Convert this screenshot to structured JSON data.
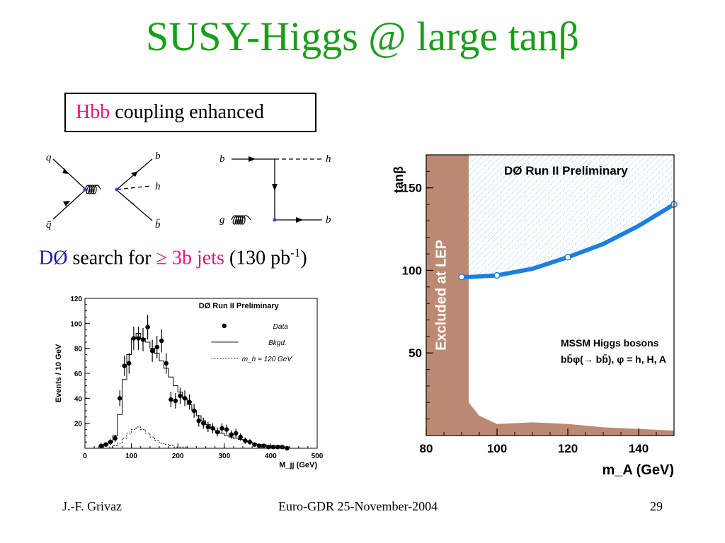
{
  "title": {
    "main": "SUSY-Higgs @ large tan",
    "beta": "β"
  },
  "box": {
    "hbb": "Hbb",
    "rest": " coupling enhanced"
  },
  "feynman": {
    "diagram1": {
      "top_left": "q",
      "bottom_left": "q̄",
      "top_right": "b",
      "middle_right": "h",
      "bottom_right": "b̄"
    },
    "diagram2": {
      "top_left": "b",
      "top_right": "h",
      "bottom_left": "g",
      "bottom_right": "b"
    }
  },
  "search": {
    "d0": "DØ",
    "text1": " search for ",
    "geq": "≥ 3b jets",
    "paren": " (130 pb",
    "sup": "-1",
    "close": ")"
  },
  "footer": {
    "author": "J.-F. Grivaz",
    "event": "Euro-GDR 25-November-2004",
    "page": "29"
  },
  "chart_data": [
    {
      "type": "histogram",
      "title": "DØ Run II Preliminary",
      "xlabel": "M_jj (GeV)",
      "ylabel": "Events / 10 GeV",
      "xlim": [
        0,
        500
      ],
      "ylim": [
        0,
        120
      ],
      "xticks": [
        0,
        100,
        200,
        300,
        400,
        500
      ],
      "yticks": [
        20,
        40,
        60,
        80,
        100,
        120
      ],
      "legend": [
        {
          "label": "Data",
          "style": "marker"
        },
        {
          "label": "Bkgd.",
          "style": "solid"
        },
        {
          "label": "m_h = 120 GeV",
          "style": "dashed"
        }
      ],
      "x": [
        35,
        45,
        55,
        65,
        75,
        85,
        95,
        105,
        115,
        125,
        135,
        145,
        155,
        165,
        175,
        185,
        195,
        205,
        215,
        225,
        235,
        245,
        255,
        265,
        275,
        285,
        295,
        305,
        315,
        325,
        335,
        345,
        355,
        365,
        375,
        385,
        395,
        405,
        415,
        425,
        435
      ],
      "data": [
        2,
        3,
        5,
        8,
        40,
        66,
        68,
        88,
        88,
        87,
        97,
        78,
        81,
        86,
        68,
        39,
        38,
        42,
        40,
        37,
        30,
        22,
        20,
        17,
        16,
        13,
        16,
        15,
        11,
        12,
        9,
        6,
        5,
        3,
        2,
        2,
        1,
        1,
        1,
        1,
        0
      ],
      "bkgd": [
        2,
        3,
        5,
        10,
        27,
        55,
        75,
        88,
        92,
        88,
        85,
        80,
        76,
        70,
        64,
        57,
        50,
        45,
        40,
        35,
        30,
        26,
        22,
        19,
        16,
        14,
        12,
        10,
        9,
        8,
        7,
        6,
        5,
        4,
        3,
        3,
        2,
        2,
        2,
        1,
        1
      ],
      "signal": [
        0,
        0,
        1,
        2,
        4,
        8,
        12,
        15,
        17,
        15,
        12,
        9,
        6,
        4,
        3,
        2,
        1,
        1,
        1,
        0,
        0,
        0,
        0,
        0,
        0,
        0,
        0,
        0,
        0,
        0,
        0,
        0,
        0,
        0,
        0,
        0,
        0,
        0,
        0,
        0,
        0
      ]
    },
    {
      "type": "area",
      "title": "DØ Run II Preliminary",
      "xlabel": "m_A (GeV)",
      "ylabel": "tanβ",
      "xlim": [
        80,
        150
      ],
      "ylim": [
        0,
        170
      ],
      "xticks": [
        80,
        100,
        120,
        140
      ],
      "yticks": [
        50,
        100,
        150
      ],
      "annotation_region": "Excluded at LEP",
      "annotation_text1": "MSSM Higgs bosons",
      "annotation_text2": "bb̄φ(→ bb̄), φ = h, H, A",
      "lep_vertical_edge": 92,
      "lep_floor": [
        [
          92,
          20
        ],
        [
          95,
          12
        ],
        [
          100,
          7
        ],
        [
          110,
          8
        ],
        [
          120,
          7
        ],
        [
          130,
          5
        ],
        [
          140,
          4
        ],
        [
          150,
          3
        ]
      ],
      "limit_curve": [
        [
          90,
          96
        ],
        [
          92,
          96
        ],
        [
          100,
          97
        ],
        [
          110,
          101
        ],
        [
          120,
          108
        ],
        [
          130,
          116
        ],
        [
          140,
          127
        ],
        [
          150,
          140
        ]
      ],
      "limit_markers": [
        90,
        100,
        120,
        150
      ],
      "colors": {
        "lep": "#bc8a72",
        "limit": "#1a7fe0",
        "hatch": "#5ab8e8"
      }
    }
  ]
}
